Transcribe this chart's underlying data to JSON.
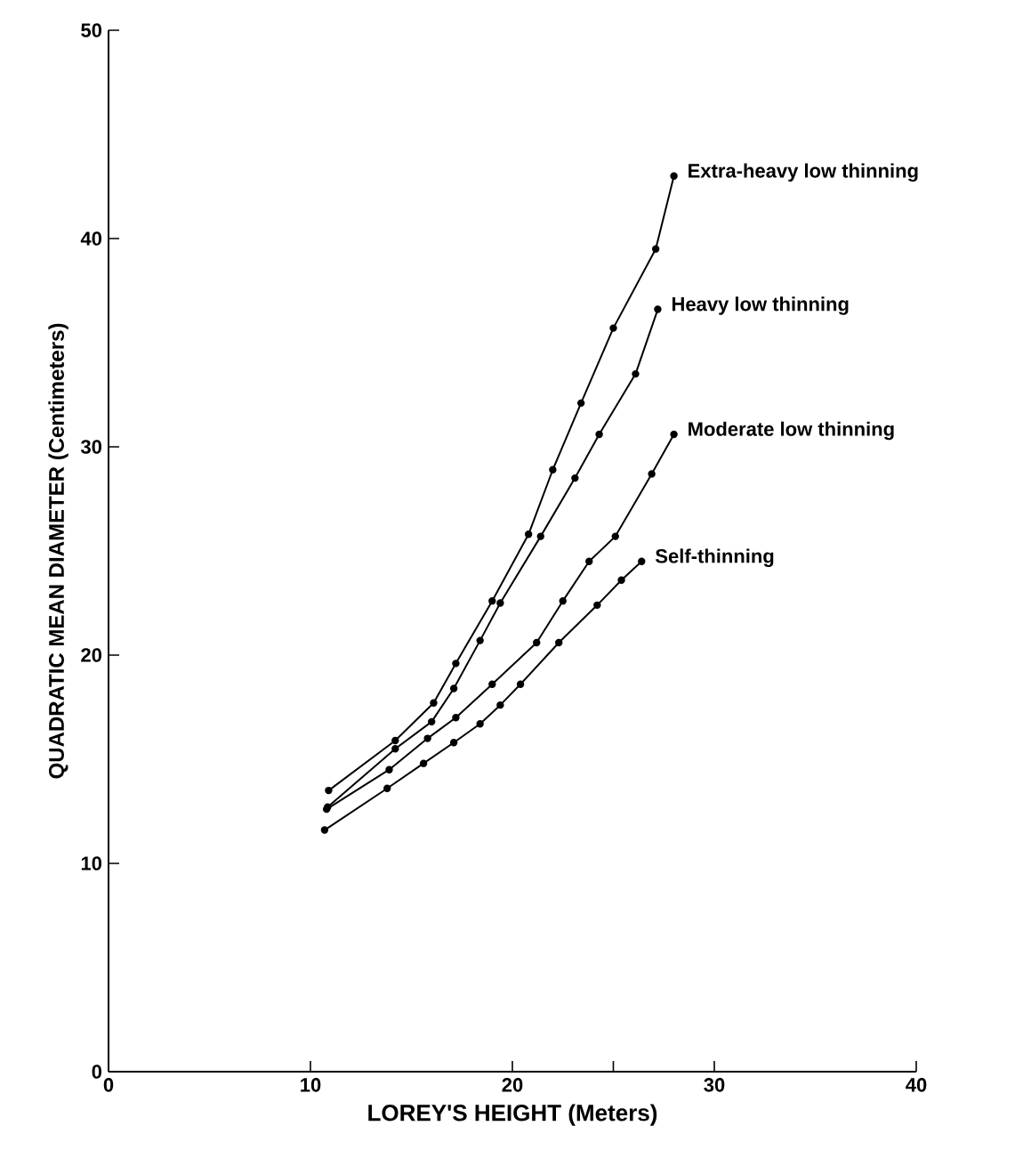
{
  "chart_data": {
    "type": "line",
    "xlabel": "LOREY'S HEIGHT (Meters)",
    "ylabel": "QUADRATIC MEAN DIAMETER (Centimeters)",
    "xlim": [
      0,
      40
    ],
    "ylim": [
      0,
      50
    ],
    "xticks": [
      0,
      10,
      20,
      {
        "value": 25,
        "label": null
      },
      30,
      40
    ],
    "yticks": [
      0,
      10,
      20,
      30,
      40,
      50
    ],
    "marker": "circle",
    "line_style": "solid",
    "grid": false,
    "legend": false,
    "series": [
      {
        "name": "Extra-heavy low thinning",
        "color": "#000000",
        "x": [
          10.9,
          14.2,
          16.1,
          17.2,
          19.0,
          20.8,
          22.0,
          23.4,
          25.0,
          27.1,
          28.0
        ],
        "values": [
          13.5,
          15.9,
          17.7,
          19.6,
          22.6,
          25.8,
          28.9,
          32.1,
          35.7,
          39.5,
          43.0
        ]
      },
      {
        "name": "Heavy low thinning",
        "color": "#000000",
        "x": [
          10.85,
          14.2,
          16.0,
          17.1,
          18.4,
          19.4,
          21.4,
          23.1,
          24.3,
          26.1,
          27.2
        ],
        "values": [
          12.7,
          15.5,
          16.8,
          18.4,
          20.7,
          22.5,
          25.7,
          28.5,
          30.6,
          33.5,
          36.6
        ]
      },
      {
        "name": "Moderate low thinning",
        "color": "#000000",
        "x": [
          10.8,
          13.9,
          15.8,
          17.2,
          19.0,
          21.2,
          22.5,
          23.8,
          25.1,
          26.9,
          28.0
        ],
        "values": [
          12.6,
          14.5,
          16.0,
          17.0,
          18.6,
          20.6,
          22.6,
          24.5,
          25.7,
          28.7,
          30.6
        ]
      },
      {
        "name": "Self-thinning",
        "color": "#000000",
        "x": [
          10.7,
          13.8,
          15.6,
          17.1,
          18.4,
          19.4,
          20.4,
          22.3,
          24.2,
          25.4,
          26.4
        ],
        "values": [
          11.6,
          13.6,
          14.8,
          15.8,
          16.7,
          17.6,
          18.6,
          20.6,
          22.4,
          23.6,
          24.5
        ]
      }
    ]
  }
}
